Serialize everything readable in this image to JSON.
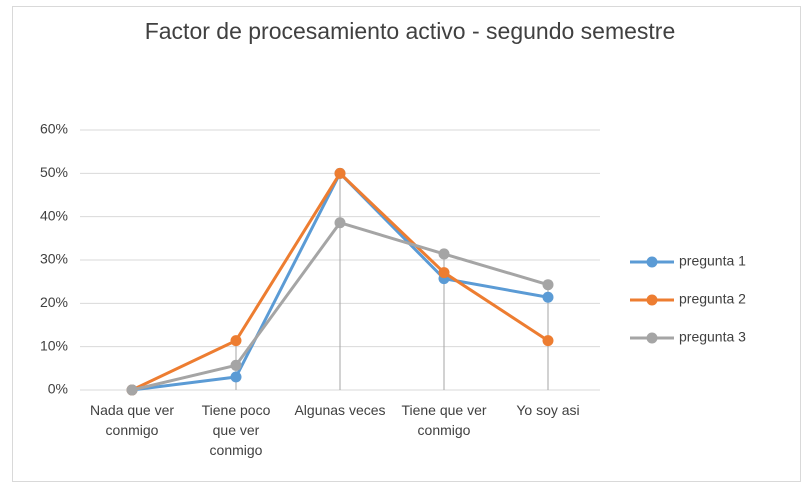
{
  "chart_data": {
    "type": "line",
    "title": "Factor de procesamiento activo - segundo semestre",
    "categories": [
      "Nada que ver conmigo",
      "Tiene poco que ver conmigo",
      "Algunas veces",
      "Tiene que ver conmigo",
      "Yo soy asi"
    ],
    "series": [
      {
        "name": "pregunta 1",
        "color": "#5b9bd5",
        "values": [
          0,
          3,
          50,
          25.7,
          21.4
        ]
      },
      {
        "name": "pregunta 2",
        "color": "#ed7d31",
        "values": [
          0,
          11.4,
          50,
          27.1,
          11.4
        ]
      },
      {
        "name": "pregunta 3",
        "color": "#a5a5a5",
        "values": [
          0,
          5.7,
          38.6,
          31.4,
          24.3
        ]
      }
    ],
    "ylim": [
      0,
      60
    ],
    "yticks": [
      {
        "value": 0,
        "label": "0%"
      },
      {
        "value": 10,
        "label": "10%"
      },
      {
        "value": 20,
        "label": "20%"
      },
      {
        "value": 30,
        "label": "30%"
      },
      {
        "value": 40,
        "label": "40%"
      },
      {
        "value": 50,
        "label": "50%"
      },
      {
        "value": 60,
        "label": "60%"
      }
    ],
    "grid": true,
    "legend": "right"
  }
}
